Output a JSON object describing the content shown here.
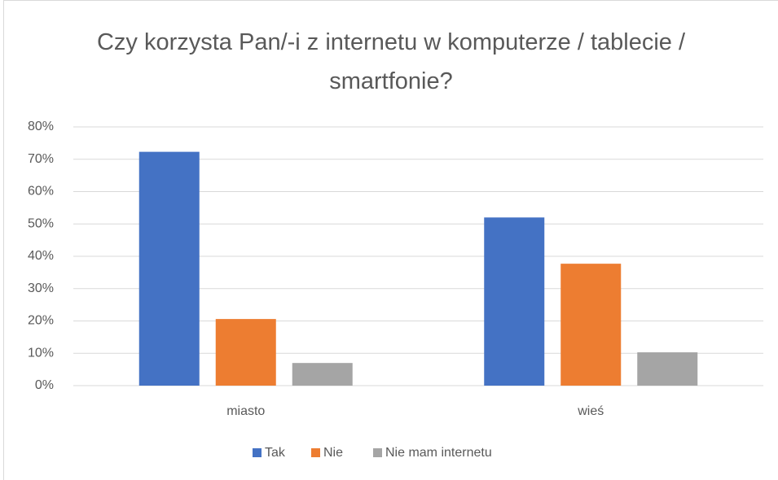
{
  "chart_data": {
    "type": "bar",
    "title": "Czy korzysta Pan/-i z internetu w komputerze / tablecie / smartfonie?",
    "categories": [
      "miasto",
      "wieś"
    ],
    "series": [
      {
        "name": "Tak",
        "color": "#4472c4",
        "values": [
          72.3,
          52.0
        ]
      },
      {
        "name": "Nie",
        "color": "#ed7d31",
        "values": [
          20.6,
          37.7
        ]
      },
      {
        "name": "Nie mam internetu",
        "color": "#a5a5a5",
        "values": [
          7.0,
          10.3
        ]
      }
    ],
    "ylim": [
      0,
      80
    ],
    "yticks": [
      {
        "value": 0,
        "label": "0%"
      },
      {
        "value": 10,
        "label": "10%"
      },
      {
        "value": 20,
        "label": "20%"
      },
      {
        "value": 30,
        "label": "30%"
      },
      {
        "value": 40,
        "label": "40%"
      },
      {
        "value": 50,
        "label": "50%"
      },
      {
        "value": 60,
        "label": "60%"
      },
      {
        "value": 70,
        "label": "70%"
      },
      {
        "value": 80,
        "label": "80%"
      }
    ],
    "grid": true,
    "legend": "bottom"
  }
}
